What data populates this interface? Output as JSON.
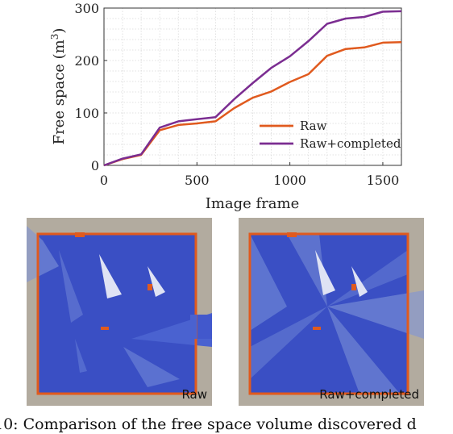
{
  "chart_data": {
    "type": "line",
    "xlabel": "Image frame",
    "ylabel_main": "Free space (m",
    "ylabel_sup": "3",
    "ylabel_close": ")",
    "xlim": [
      0,
      1600
    ],
    "ylim": [
      0,
      300
    ],
    "xticks": [
      0,
      500,
      1000,
      1500
    ],
    "yticks": [
      0,
      100,
      200,
      300
    ],
    "grid": true,
    "legend_position": "lower-right",
    "series": [
      {
        "name": "Raw",
        "color": "#e05a1e",
        "x": [
          0,
          100,
          200,
          300,
          400,
          500,
          600,
          700,
          800,
          900,
          1000,
          1100,
          1200,
          1300,
          1400,
          1500,
          1600
        ],
        "y": [
          0,
          12,
          20,
          67,
          77,
          80,
          84,
          109,
          129,
          141,
          159,
          174,
          209,
          222,
          225,
          234,
          235
        ]
      },
      {
        "name": "Raw+completed",
        "color": "#7b2d91",
        "x": [
          0,
          100,
          200,
          300,
          400,
          500,
          600,
          700,
          800,
          900,
          1000,
          1100,
          1200,
          1300,
          1400,
          1500,
          1600
        ],
        "y": [
          0,
          13,
          21,
          72,
          84,
          88,
          92,
          126,
          157,
          186,
          208,
          237,
          270,
          280,
          283,
          293,
          294
        ]
      }
    ]
  },
  "maps": {
    "left_label": "Raw",
    "right_label": "Raw+completed",
    "colors": {
      "background": "#b2ab9f",
      "free_space": "#3a4fc4",
      "free_space_light": "#7f95d8",
      "wall": "#e05a1e"
    }
  },
  "caption": "10: Comparison of the free space volume discovered d"
}
